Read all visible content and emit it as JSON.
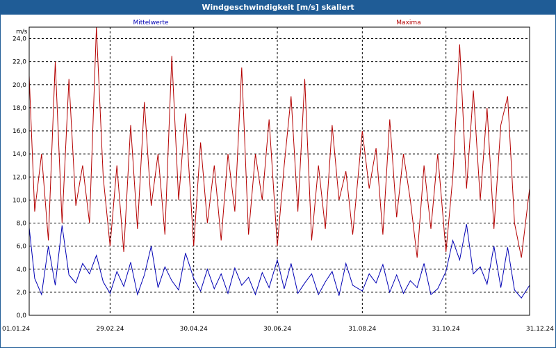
{
  "window": {
    "title": "Windgeschwindigkeit [m/s] skaliert"
  },
  "chart_data": {
    "type": "line",
    "title": "Windgeschwindigkeit [m/s] skaliert",
    "ylabel": "m/s",
    "xlabel": "",
    "ylim": [
      0,
      25
    ],
    "xlim": [
      "2024-01-01",
      "2024-12-31"
    ],
    "grid": true,
    "yticks": [
      0,
      2,
      4,
      6,
      8,
      10,
      12,
      14,
      16,
      18,
      20,
      22,
      24
    ],
    "ytick_labels": [
      "0,0",
      "2,0",
      "4,0",
      "6,0",
      "8,0",
      "10,0",
      "12,0",
      "14,0",
      "16,0",
      "18,0",
      "20,0",
      "22,0",
      "24,0"
    ],
    "xtick_labels": [
      "01.01.24",
      "29.02.24",
      "30.04.24",
      "30.06.24",
      "31.08.24",
      "31.10.24",
      "31.12.24"
    ],
    "xtick_dates": [
      "2024-01-01",
      "2024-02-29",
      "2024-04-30",
      "2024-06-30",
      "2024-08-31",
      "2024-10-31",
      "2024-12-31"
    ],
    "series": [
      {
        "name": "Mittelwerte",
        "color": "#0000b4",
        "x": [
          "2024-01-01",
          "2024-01-05",
          "2024-01-10",
          "2024-01-15",
          "2024-01-20",
          "2024-01-25",
          "2024-01-30",
          "2024-02-04",
          "2024-02-09",
          "2024-02-14",
          "2024-02-19",
          "2024-02-24",
          "2024-02-29",
          "2024-03-05",
          "2024-03-10",
          "2024-03-15",
          "2024-03-20",
          "2024-03-25",
          "2024-03-30",
          "2024-04-04",
          "2024-04-09",
          "2024-04-14",
          "2024-04-19",
          "2024-04-24",
          "2024-04-30",
          "2024-05-05",
          "2024-05-10",
          "2024-05-15",
          "2024-05-20",
          "2024-05-25",
          "2024-05-30",
          "2024-06-04",
          "2024-06-09",
          "2024-06-14",
          "2024-06-19",
          "2024-06-24",
          "2024-06-30",
          "2024-07-05",
          "2024-07-10",
          "2024-07-15",
          "2024-07-20",
          "2024-07-25",
          "2024-07-30",
          "2024-08-04",
          "2024-08-09",
          "2024-08-14",
          "2024-08-19",
          "2024-08-24",
          "2024-08-31",
          "2024-09-05",
          "2024-09-10",
          "2024-09-15",
          "2024-09-20",
          "2024-09-25",
          "2024-09-30",
          "2024-10-05",
          "2024-10-10",
          "2024-10-15",
          "2024-10-20",
          "2024-10-25",
          "2024-10-31",
          "2024-11-05",
          "2024-11-10",
          "2024-11-15",
          "2024-11-20",
          "2024-11-25",
          "2024-11-30",
          "2024-12-05",
          "2024-12-10",
          "2024-12-15",
          "2024-12-20",
          "2024-12-25",
          "2024-12-31"
        ],
        "values": [
          7.6,
          3.2,
          1.8,
          6.0,
          2.6,
          7.8,
          3.5,
          2.8,
          4.5,
          3.6,
          5.2,
          2.9,
          1.9,
          3.8,
          2.5,
          4.6,
          1.8,
          3.5,
          6.0,
          2.4,
          4.2,
          3.0,
          2.2,
          5.4,
          3.2,
          2.1,
          4.0,
          2.3,
          3.6,
          1.9,
          4.1,
          2.6,
          3.3,
          1.8,
          3.7,
          2.4,
          4.8,
          2.3,
          4.5,
          1.9,
          2.8,
          3.6,
          1.8,
          2.9,
          3.8,
          1.7,
          4.5,
          2.6,
          2.1,
          3.6,
          2.8,
          4.4,
          2.0,
          3.5,
          1.9,
          3.0,
          2.4,
          4.5,
          1.8,
          2.3,
          3.8,
          6.5,
          4.8,
          7.9,
          3.6,
          4.2,
          2.7,
          6.0,
          2.4,
          5.9,
          2.2,
          1.5,
          2.6
        ]
      },
      {
        "name": "Maxima",
        "color": "#b40000",
        "x": [
          "2024-01-01",
          "2024-01-05",
          "2024-01-10",
          "2024-01-15",
          "2024-01-20",
          "2024-01-25",
          "2024-01-30",
          "2024-02-04",
          "2024-02-09",
          "2024-02-14",
          "2024-02-19",
          "2024-02-24",
          "2024-02-29",
          "2024-03-05",
          "2024-03-10",
          "2024-03-15",
          "2024-03-20",
          "2024-03-25",
          "2024-03-30",
          "2024-04-04",
          "2024-04-09",
          "2024-04-14",
          "2024-04-19",
          "2024-04-24",
          "2024-04-30",
          "2024-05-05",
          "2024-05-10",
          "2024-05-15",
          "2024-05-20",
          "2024-05-25",
          "2024-05-30",
          "2024-06-04",
          "2024-06-09",
          "2024-06-14",
          "2024-06-19",
          "2024-06-24",
          "2024-06-30",
          "2024-07-05",
          "2024-07-10",
          "2024-07-15",
          "2024-07-20",
          "2024-07-25",
          "2024-07-30",
          "2024-08-04",
          "2024-08-09",
          "2024-08-14",
          "2024-08-19",
          "2024-08-24",
          "2024-08-31",
          "2024-09-05",
          "2024-09-10",
          "2024-09-15",
          "2024-09-20",
          "2024-09-25",
          "2024-09-30",
          "2024-10-05",
          "2024-10-10",
          "2024-10-15",
          "2024-10-20",
          "2024-10-25",
          "2024-10-31",
          "2024-11-05",
          "2024-11-10",
          "2024-11-15",
          "2024-11-20",
          "2024-11-25",
          "2024-11-30",
          "2024-12-05",
          "2024-12-10",
          "2024-12-15",
          "2024-12-20",
          "2024-12-25",
          "2024-12-31"
        ],
        "values": [
          20.8,
          9.0,
          14.0,
          6.5,
          22.0,
          8.0,
          20.5,
          9.5,
          13.0,
          8.0,
          25.0,
          12.0,
          6.0,
          13.0,
          5.5,
          16.5,
          7.5,
          18.5,
          9.5,
          14.0,
          7.0,
          22.5,
          10.0,
          17.5,
          6.0,
          15.0,
          8.0,
          13.0,
          6.5,
          14.0,
          9.0,
          21.5,
          7.0,
          14.0,
          10.0,
          17.0,
          6.0,
          13.0,
          19.0,
          9.0,
          20.5,
          6.5,
          13.0,
          7.5,
          16.5,
          10.0,
          12.5,
          7.0,
          16.0,
          11.0,
          14.5,
          7.0,
          17.0,
          8.5,
          14.0,
          10.0,
          5.0,
          13.0,
          7.5,
          14.0,
          5.5,
          12.0,
          23.5,
          11.0,
          19.5,
          10.0,
          18.0,
          7.5,
          16.5,
          19.0,
          8.0,
          5.0,
          11.0
        ]
      }
    ]
  }
}
